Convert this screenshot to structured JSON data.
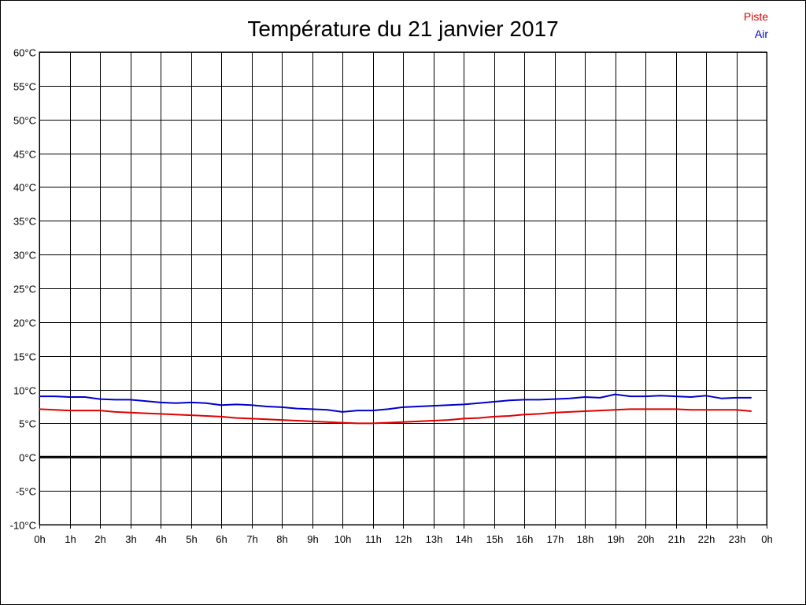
{
  "chart_data": {
    "type": "line",
    "title": "Température du 21 janvier 2017",
    "xlabel": "",
    "ylabel": "",
    "ylim": [
      -10,
      60
    ],
    "xlim": [
      0,
      24
    ],
    "y_tick_labels": [
      "60°C",
      "55°C",
      "50°C",
      "45°C",
      "40°C",
      "35°C",
      "30°C",
      "25°C",
      "20°C",
      "15°C",
      "10°C",
      "5°C",
      "0°C",
      "-5°C",
      "-10°C"
    ],
    "y_ticks": [
      60,
      55,
      50,
      45,
      40,
      35,
      30,
      25,
      20,
      15,
      10,
      5,
      0,
      -5,
      -10
    ],
    "x_tick_labels": [
      "0h",
      "1h",
      "2h",
      "3h",
      "4h",
      "5h",
      "6h",
      "7h",
      "8h",
      "9h",
      "10h",
      "11h",
      "12h",
      "13h",
      "14h",
      "15h",
      "16h",
      "17h",
      "18h",
      "19h",
      "20h",
      "21h",
      "22h",
      "23h",
      "0h"
    ],
    "x_ticks": [
      0,
      1,
      2,
      3,
      4,
      5,
      6,
      7,
      8,
      9,
      10,
      11,
      12,
      13,
      14,
      15,
      16,
      17,
      18,
      19,
      20,
      21,
      22,
      23,
      24
    ],
    "grid": true,
    "zero_line": true,
    "legend_position": "top-right",
    "series": [
      {
        "name": "Piste",
        "color": "#e00000",
        "x": [
          0,
          0.5,
          1,
          1.5,
          2,
          2.5,
          3,
          3.5,
          4,
          4.5,
          5,
          5.5,
          6,
          6.5,
          7,
          7.5,
          8,
          8.5,
          9,
          9.5,
          10,
          10.5,
          11,
          11.5,
          12,
          12.5,
          13,
          13.5,
          14,
          14.5,
          15,
          15.5,
          16,
          16.5,
          17,
          17.5,
          18,
          18.5,
          19,
          19.5,
          20,
          20.5,
          21,
          21.5,
          22,
          22.5,
          23,
          23.5
        ],
        "values": [
          7.1,
          7.0,
          6.9,
          6.9,
          6.9,
          6.7,
          6.6,
          6.5,
          6.4,
          6.3,
          6.2,
          6.1,
          6.0,
          5.8,
          5.7,
          5.6,
          5.5,
          5.4,
          5.3,
          5.2,
          5.1,
          5.0,
          5.0,
          5.1,
          5.2,
          5.3,
          5.4,
          5.5,
          5.7,
          5.8,
          6.0,
          6.1,
          6.3,
          6.4,
          6.6,
          6.7,
          6.8,
          6.9,
          7.0,
          7.1,
          7.1,
          7.1,
          7.1,
          7.0,
          7.0,
          7.0,
          7.0,
          6.8
        ]
      },
      {
        "name": "Air",
        "color": "#0000cc",
        "x": [
          0,
          0.5,
          1,
          1.5,
          2,
          2.5,
          3,
          3.5,
          4,
          4.5,
          5,
          5.5,
          6,
          6.5,
          7,
          7.5,
          8,
          8.5,
          9,
          9.5,
          10,
          10.5,
          11,
          11.5,
          12,
          12.5,
          13,
          13.5,
          14,
          14.5,
          15,
          15.5,
          16,
          16.5,
          17,
          17.5,
          18,
          18.5,
          19,
          19.5,
          20,
          20.5,
          21,
          21.5,
          22,
          22.5,
          23,
          23.5
        ],
        "values": [
          9.0,
          9.0,
          8.9,
          8.9,
          8.6,
          8.5,
          8.5,
          8.3,
          8.1,
          8.0,
          8.1,
          8.0,
          7.7,
          7.8,
          7.7,
          7.5,
          7.4,
          7.2,
          7.1,
          7.0,
          6.7,
          6.9,
          6.9,
          7.1,
          7.4,
          7.5,
          7.6,
          7.7,
          7.8,
          8.0,
          8.2,
          8.4,
          8.5,
          8.5,
          8.6,
          8.7,
          8.9,
          8.8,
          9.3,
          9.0,
          9.0,
          9.1,
          9.0,
          8.9,
          9.1,
          8.7,
          8.8,
          8.8
        ]
      }
    ]
  }
}
